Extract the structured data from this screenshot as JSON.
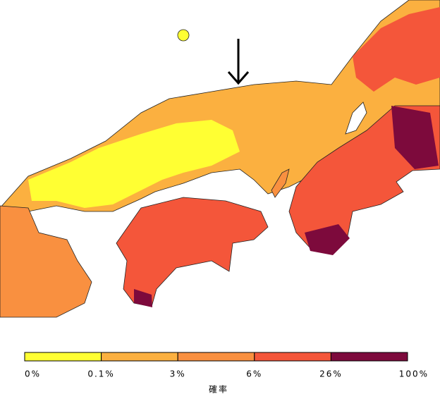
{
  "legend": {
    "title": "確率",
    "labels": [
      "0%",
      "0.1%",
      "3%",
      "6%",
      "26%",
      "100%"
    ],
    "colors": [
      "#ffff33",
      "#fbb040",
      "#f99040",
      "#f4563a",
      "#7d0a3c"
    ]
  }
}
